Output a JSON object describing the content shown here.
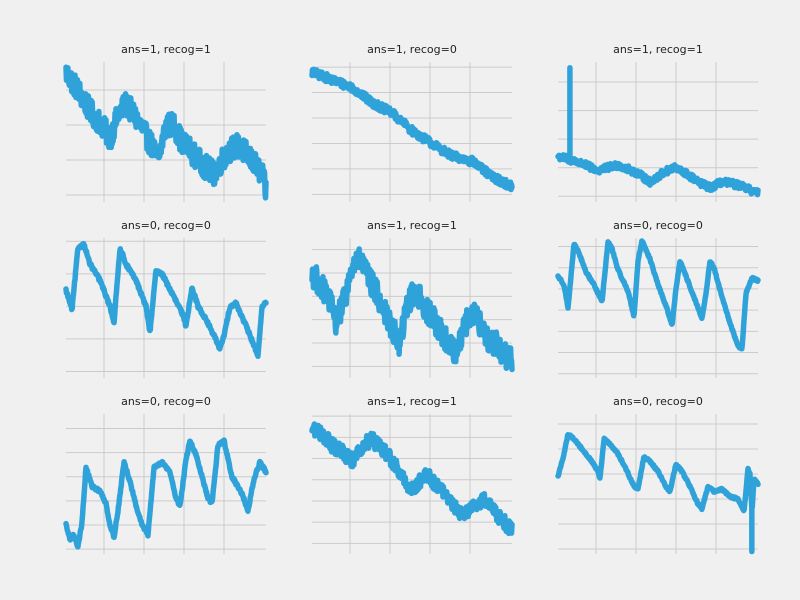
{
  "chart_data": [
    {
      "type": "line",
      "title": "ans=1, recog=1",
      "color": "#30a2da",
      "xlim": [
        0,
        100
      ],
      "ylim": [
        -0.2,
        3.8
      ],
      "xgrid": [
        19,
        39,
        59,
        79
      ],
      "ygrid": [
        0,
        1,
        2,
        3
      ],
      "noise": 0.35,
      "spikes": [],
      "anchors": [
        [
          0,
          3.5
        ],
        [
          6,
          3.0
        ],
        [
          12,
          2.4
        ],
        [
          18,
          2.0
        ],
        [
          22,
          1.6
        ],
        [
          26,
          2.3
        ],
        [
          30,
          2.6
        ],
        [
          34,
          2.3
        ],
        [
          38,
          1.9
        ],
        [
          43,
          1.4
        ],
        [
          46,
          1.0
        ],
        [
          50,
          2.0
        ],
        [
          54,
          2.0
        ],
        [
          58,
          1.5
        ],
        [
          62,
          1.3
        ],
        [
          66,
          1.0
        ],
        [
          70,
          0.8
        ],
        [
          74,
          0.6
        ],
        [
          78,
          1.0
        ],
        [
          82,
          1.3
        ],
        [
          86,
          1.4
        ],
        [
          90,
          1.2
        ],
        [
          94,
          0.9
        ],
        [
          98,
          0.6
        ],
        [
          100,
          0.1
        ]
      ]
    },
    {
      "type": "line",
      "title": "ans=1, recog=0",
      "color": "#30a2da",
      "xlim": [
        0,
        100
      ],
      "ylim": [
        -0.3,
        5.2
      ],
      "xgrid": [
        19,
        39,
        59,
        79
      ],
      "ygrid": [
        0,
        1,
        2,
        3,
        4,
        5
      ],
      "noise": 0.16,
      "spikes": [],
      "anchors": [
        [
          0,
          4.8
        ],
        [
          10,
          4.5
        ],
        [
          20,
          4.2
        ],
        [
          30,
          3.6
        ],
        [
          40,
          3.2
        ],
        [
          50,
          2.5
        ],
        [
          60,
          2.0
        ],
        [
          70,
          1.5
        ],
        [
          80,
          1.3
        ],
        [
          90,
          0.7
        ],
        [
          100,
          0.3
        ]
      ]
    },
    {
      "type": "line",
      "title": "ans=1, recog=1",
      "color": "#30a2da",
      "xlim": [
        0,
        100
      ],
      "ylim": [
        -0.2,
        4.7
      ],
      "xgrid": [
        19,
        39,
        59,
        79
      ],
      "ygrid": [
        0,
        1,
        2,
        3,
        4
      ],
      "noise": 0.12,
      "spikes": [
        [
          6,
          4.5
        ]
      ],
      "anchors": [
        [
          0,
          1.4
        ],
        [
          10,
          1.2
        ],
        [
          20,
          0.9
        ],
        [
          30,
          1.1
        ],
        [
          40,
          0.8
        ],
        [
          46,
          0.5
        ],
        [
          52,
          0.8
        ],
        [
          58,
          1.0
        ],
        [
          64,
          0.8
        ],
        [
          70,
          0.5
        ],
        [
          76,
          0.3
        ],
        [
          82,
          0.5
        ],
        [
          90,
          0.4
        ],
        [
          100,
          0.1
        ]
      ]
    },
    {
      "type": "line",
      "title": "ans=0, recog=0",
      "color": "#30a2da",
      "xlim": [
        0,
        100
      ],
      "ylim": [
        -0.2,
        4.1
      ],
      "xgrid": [
        19,
        39,
        59,
        79
      ],
      "ygrid": [
        0,
        1,
        2,
        3,
        4
      ],
      "noise": 0.05,
      "spikes": [],
      "anchors": [
        [
          0,
          2.5
        ],
        [
          3,
          1.9
        ],
        [
          6,
          3.8
        ],
        [
          9,
          3.9
        ],
        [
          12,
          3.3
        ],
        [
          17,
          2.8
        ],
        [
          22,
          2.0
        ],
        [
          24,
          1.5
        ],
        [
          27,
          3.8
        ],
        [
          30,
          3.3
        ],
        [
          35,
          2.8
        ],
        [
          40,
          2.0
        ],
        [
          42,
          1.2
        ],
        [
          45,
          3.1
        ],
        [
          48,
          3.0
        ],
        [
          53,
          2.4
        ],
        [
          58,
          1.8
        ],
        [
          60,
          1.4
        ],
        [
          63,
          2.6
        ],
        [
          66,
          2.0
        ],
        [
          70,
          1.6
        ],
        [
          74,
          1.1
        ],
        [
          77,
          0.7
        ],
        [
          79,
          1.1
        ],
        [
          82,
          2.0
        ],
        [
          85,
          2.1
        ],
        [
          90,
          1.4
        ],
        [
          94,
          0.8
        ],
        [
          96,
          0.5
        ],
        [
          98,
          2.0
        ],
        [
          100,
          2.1
        ]
      ]
    },
    {
      "type": "line",
      "title": "ans=1, recog=1",
      "color": "#30a2da",
      "xlim": [
        0,
        100
      ],
      "ylim": [
        -0.5,
        5.5
      ],
      "xgrid": [
        19,
        39,
        59,
        79
      ],
      "ygrid": [
        0,
        1,
        2,
        3,
        4,
        5
      ],
      "noise": 0.55,
      "spikes": [],
      "anchors": [
        [
          0,
          4.0
        ],
        [
          8,
          3.0
        ],
        [
          12,
          1.9
        ],
        [
          16,
          2.8
        ],
        [
          20,
          4.2
        ],
        [
          24,
          4.6
        ],
        [
          28,
          3.8
        ],
        [
          32,
          3.2
        ],
        [
          36,
          2.4
        ],
        [
          40,
          1.6
        ],
        [
          44,
          1.0
        ],
        [
          48,
          2.8
        ],
        [
          52,
          3.2
        ],
        [
          56,
          2.6
        ],
        [
          60,
          2.1
        ],
        [
          64,
          1.6
        ],
        [
          68,
          1.0
        ],
        [
          72,
          0.6
        ],
        [
          76,
          1.7
        ],
        [
          80,
          2.4
        ],
        [
          84,
          1.8
        ],
        [
          88,
          1.2
        ],
        [
          92,
          1.0
        ],
        [
          96,
          0.5
        ],
        [
          100,
          0.3
        ]
      ]
    },
    {
      "type": "line",
      "title": "ans=0, recog=0",
      "color": "#30a2da",
      "xlim": [
        0,
        100
      ],
      "ylim": [
        -0.2,
        6.4
      ],
      "xgrid": [
        19,
        39,
        59,
        79
      ],
      "ygrid": [
        0,
        1,
        2,
        3,
        4,
        5,
        6
      ],
      "noise": 0.05,
      "spikes": [],
      "anchors": [
        [
          0,
          4.6
        ],
        [
          3,
          4.2
        ],
        [
          5,
          3.1
        ],
        [
          8,
          6.1
        ],
        [
          10,
          5.8
        ],
        [
          14,
          4.8
        ],
        [
          18,
          4.2
        ],
        [
          22,
          3.4
        ],
        [
          25,
          6.2
        ],
        [
          27,
          5.9
        ],
        [
          30,
          4.9
        ],
        [
          35,
          3.9
        ],
        [
          38,
          2.7
        ],
        [
          40,
          5.3
        ],
        [
          42,
          6.3
        ],
        [
          46,
          5.4
        ],
        [
          50,
          4.2
        ],
        [
          54,
          3.2
        ],
        [
          57,
          2.3
        ],
        [
          59,
          4.0
        ],
        [
          61,
          5.3
        ],
        [
          64,
          4.6
        ],
        [
          68,
          3.6
        ],
        [
          72,
          2.6
        ],
        [
          74,
          3.8
        ],
        [
          76,
          5.3
        ],
        [
          78,
          5.0
        ],
        [
          82,
          3.6
        ],
        [
          86,
          2.4
        ],
        [
          90,
          1.3
        ],
        [
          92,
          1.2
        ],
        [
          94,
          3.8
        ],
        [
          97,
          4.5
        ],
        [
          100,
          4.4
        ]
      ]
    },
    {
      "type": "line",
      "title": "ans=0, recog=0",
      "color": "#30a2da",
      "xlim": [
        0,
        100
      ],
      "ylim": [
        -0.2,
        5.6
      ],
      "xgrid": [
        19,
        39,
        59,
        79
      ],
      "ygrid": [
        0,
        1,
        2,
        3,
        4,
        5
      ],
      "noise": 0.06,
      "spikes": [],
      "anchors": [
        [
          0,
          1.0
        ],
        [
          2,
          0.4
        ],
        [
          4,
          0.6
        ],
        [
          6,
          0.1
        ],
        [
          8,
          1.1
        ],
        [
          10,
          3.4
        ],
        [
          13,
          2.6
        ],
        [
          17,
          2.4
        ],
        [
          20,
          1.9
        ],
        [
          22,
          1.0
        ],
        [
          24,
          0.5
        ],
        [
          26,
          1.6
        ],
        [
          29,
          3.6
        ],
        [
          32,
          2.8
        ],
        [
          35,
          1.8
        ],
        [
          38,
          1.0
        ],
        [
          41,
          0.6
        ],
        [
          44,
          3.4
        ],
        [
          48,
          3.6
        ],
        [
          52,
          3.2
        ],
        [
          55,
          2.1
        ],
        [
          57,
          1.8
        ],
        [
          60,
          3.7
        ],
        [
          62,
          4.5
        ],
        [
          65,
          3.9
        ],
        [
          68,
          3.0
        ],
        [
          71,
          2.1
        ],
        [
          73,
          1.9
        ],
        [
          76,
          4.3
        ],
        [
          79,
          4.5
        ],
        [
          83,
          3.0
        ],
        [
          88,
          2.3
        ],
        [
          91,
          1.6
        ],
        [
          94,
          2.9
        ],
        [
          97,
          3.6
        ],
        [
          100,
          3.2
        ]
      ]
    },
    {
      "type": "line",
      "title": "ans=1, recog=1",
      "color": "#30a2da",
      "xlim": [
        0,
        100
      ],
      "ylim": [
        -0.5,
        6.1
      ],
      "xgrid": [
        19,
        39,
        59,
        79
      ],
      "ygrid": [
        0,
        1,
        2,
        3,
        4,
        5,
        6
      ],
      "noise": 0.35,
      "spikes": [],
      "anchors": [
        [
          0,
          5.4
        ],
        [
          5,
          5.2
        ],
        [
          10,
          4.6
        ],
        [
          15,
          4.3
        ],
        [
          20,
          3.9
        ],
        [
          25,
          4.6
        ],
        [
          30,
          4.9
        ],
        [
          34,
          4.5
        ],
        [
          38,
          4.2
        ],
        [
          42,
          3.6
        ],
        [
          46,
          3.0
        ],
        [
          50,
          2.5
        ],
        [
          54,
          3.0
        ],
        [
          58,
          3.2
        ],
        [
          62,
          2.8
        ],
        [
          66,
          2.4
        ],
        [
          70,
          1.9
        ],
        [
          74,
          1.4
        ],
        [
          78,
          1.6
        ],
        [
          82,
          1.8
        ],
        [
          86,
          2.1
        ],
        [
          90,
          1.7
        ],
        [
          94,
          1.2
        ],
        [
          98,
          0.8
        ],
        [
          100,
          0.7
        ]
      ]
    },
    {
      "type": "line",
      "title": "ans=0, recog=0",
      "color": "#30a2da",
      "xlim": [
        0,
        100
      ],
      "ylim": [
        -0.2,
        5.4
      ],
      "xgrid": [
        19,
        39,
        59,
        79
      ],
      "ygrid": [
        0,
        1,
        2,
        3,
        4,
        5
      ],
      "noise": 0.04,
      "spikes": [
        [
          97,
          -0.1
        ]
      ],
      "anchors": [
        [
          0,
          2.9
        ],
        [
          3,
          3.8
        ],
        [
          5,
          4.6
        ],
        [
          8,
          4.4
        ],
        [
          12,
          4.0
        ],
        [
          16,
          3.6
        ],
        [
          20,
          3.1
        ],
        [
          21,
          2.8
        ],
        [
          23,
          4.4
        ],
        [
          26,
          4.2
        ],
        [
          30,
          3.8
        ],
        [
          34,
          3.2
        ],
        [
          38,
          2.5
        ],
        [
          40,
          2.4
        ],
        [
          43,
          3.7
        ],
        [
          46,
          3.5
        ],
        [
          50,
          3.1
        ],
        [
          54,
          2.5
        ],
        [
          56,
          2.3
        ],
        [
          59,
          3.4
        ],
        [
          62,
          3.1
        ],
        [
          66,
          2.5
        ],
        [
          70,
          1.8
        ],
        [
          72,
          1.6
        ],
        [
          75,
          2.5
        ],
        [
          78,
          2.3
        ],
        [
          82,
          2.4
        ],
        [
          86,
          2.1
        ],
        [
          90,
          2.0
        ],
        [
          93,
          1.5
        ],
        [
          95,
          3.2
        ],
        [
          96,
          3.0
        ],
        [
          97,
          1.5
        ],
        [
          98,
          2.8
        ],
        [
          100,
          2.6
        ]
      ]
    }
  ]
}
